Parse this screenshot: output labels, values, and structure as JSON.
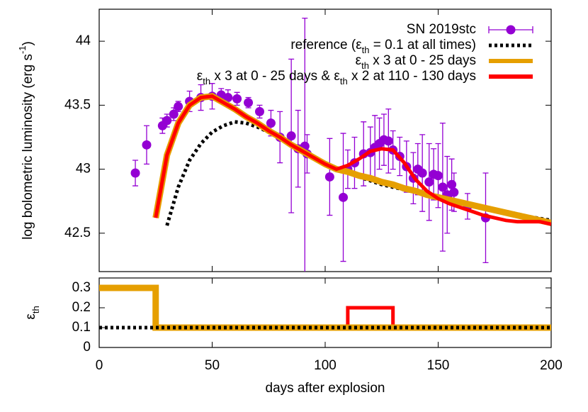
{
  "chart_data": [
    {
      "type": "line",
      "y_label": "log bolometric luminosity (erg s-1)",
      "xlim": [
        0,
        200
      ],
      "xticks": [
        0,
        50,
        100,
        150,
        200
      ],
      "ylim": [
        42.2,
        44.25
      ],
      "yticks": [
        42.5,
        43,
        43.5,
        44
      ],
      "legend": "top-right",
      "series": [
        {
          "name": "SN 2019stc",
          "type": "errorbar",
          "color": "#9400d3",
          "x": [
            16,
            21,
            28,
            30,
            33,
            35,
            40,
            45,
            50,
            54,
            57,
            61,
            66,
            71,
            76,
            80,
            85,
            88,
            91,
            92,
            102,
            108,
            110,
            113,
            117,
            120,
            122,
            124,
            126,
            128,
            130,
            133,
            136,
            139,
            141,
            143,
            146,
            148,
            150,
            152,
            154,
            156,
            157,
            163,
            171
          ],
          "values": [
            42.97,
            43.19,
            43.34,
            43.38,
            43.43,
            43.49,
            43.53,
            43.56,
            43.57,
            43.58,
            43.56,
            43.55,
            43.52,
            43.45,
            43.36,
            43.25,
            43.26,
            43.16,
            43.18,
            43.12,
            42.94,
            42.78,
            43.0,
            43.05,
            43.12,
            43.13,
            43.17,
            43.2,
            43.23,
            43.22,
            43.15,
            43.1,
            43.02,
            42.93,
            43.0,
            42.97,
            42.9,
            42.96,
            42.95,
            42.86,
            42.8,
            42.88,
            42.82,
            42.71,
            42.62
          ],
          "errors": [
            0.1,
            0.15,
            0.06,
            0.05,
            0.05,
            0.04,
            0.08,
            0.1,
            0.1,
            0.05,
            0.06,
            0.05,
            0.04,
            0.05,
            0.1,
            0.2,
            0.6,
            0.3,
            1.0,
            0.15,
            0.3,
            0.5,
            0.15,
            0.2,
            0.25,
            0.2,
            0.25,
            0.2,
            0.2,
            0.25,
            0.15,
            0.15,
            0.2,
            0.2,
            0.2,
            0.3,
            0.3,
            0.2,
            0.25,
            0.5,
            0.3,
            0.2,
            0.15,
            0.1,
            0.35
          ]
        },
        {
          "name": "reference (εth = 0.1 at all times)",
          "type": "line",
          "color": "#000000",
          "dash": true,
          "x": [
            25,
            30,
            35,
            40,
            45,
            50,
            55,
            60,
            65,
            70,
            75,
            80,
            85,
            90,
            95,
            100,
            105,
            110,
            115,
            120,
            125,
            130,
            140,
            150,
            160,
            170,
            180,
            190,
            200
          ],
          "values": [
            null,
            42.56,
            42.86,
            43.07,
            43.2,
            43.29,
            43.34,
            43.37,
            43.36,
            43.33,
            43.29,
            43.25,
            43.2,
            43.15,
            43.1,
            43.05,
            43.01,
            42.97,
            42.94,
            42.91,
            42.88,
            42.86,
            42.82,
            42.78,
            42.74,
            42.7,
            42.67,
            42.63,
            42.6
          ]
        },
        {
          "name": "εth x 3 at 0 - 25 days",
          "type": "line",
          "color": "#e69f00",
          "x": [
            25,
            30,
            35,
            40,
            45,
            50,
            55,
            60,
            65,
            70,
            75,
            80,
            85,
            90,
            95,
            100,
            105,
            110,
            115,
            120,
            125,
            130,
            135,
            140,
            145,
            150,
            155,
            160,
            165,
            170,
            175,
            180,
            185,
            190,
            195,
            200
          ],
          "values": [
            42.62,
            43.11,
            43.36,
            43.5,
            43.56,
            43.57,
            43.52,
            43.47,
            43.41,
            43.36,
            43.3,
            43.25,
            43.19,
            43.14,
            43.09,
            43.04,
            43.0,
            42.98,
            42.95,
            42.93,
            42.9,
            42.88,
            42.85,
            42.83,
            42.8,
            42.78,
            42.76,
            42.74,
            42.72,
            42.7,
            42.68,
            42.66,
            42.64,
            42.62,
            42.6,
            42.58
          ]
        },
        {
          "name": "εth x 3 at 0 - 25 days & εth x 2 at 110 - 130 days",
          "type": "line",
          "color": "#ff0000",
          "x": [
            25,
            30,
            35,
            40,
            45,
            50,
            55,
            60,
            65,
            70,
            75,
            80,
            85,
            90,
            95,
            100,
            105,
            110,
            115,
            120,
            125,
            130,
            135,
            140,
            145,
            150,
            155,
            160,
            165,
            170,
            175,
            180,
            185,
            190,
            195,
            200
          ],
          "values": [
            42.62,
            43.11,
            43.36,
            43.5,
            43.56,
            43.57,
            43.52,
            43.47,
            43.41,
            43.36,
            43.3,
            43.25,
            43.19,
            43.14,
            43.09,
            43.04,
            43.0,
            43.03,
            43.08,
            43.14,
            43.16,
            43.15,
            43.05,
            42.92,
            42.83,
            42.77,
            42.73,
            42.7,
            42.67,
            42.64,
            42.62,
            42.6,
            42.59,
            42.59,
            42.59,
            42.57
          ]
        }
      ]
    },
    {
      "type": "line",
      "x_label": "days after explosion",
      "y_label": "εth",
      "xlim": [
        0,
        200
      ],
      "xticks": [
        0,
        50,
        100,
        150,
        200
      ],
      "ylim": [
        0,
        0.35
      ],
      "yticks": [
        0,
        0.1,
        0.2,
        0.3
      ],
      "series": [
        {
          "type": "line",
          "color": "#ff0000",
          "x": [
            0,
            25,
            25,
            110,
            110,
            130,
            130,
            200
          ],
          "values": [
            0.3,
            0.3,
            0.1,
            0.1,
            0.2,
            0.2,
            0.1,
            0.1
          ]
        },
        {
          "type": "line",
          "color": "#e69f00",
          "x": [
            0,
            25,
            25,
            200
          ],
          "values": [
            0.3,
            0.3,
            0.1,
            0.1
          ]
        },
        {
          "type": "line",
          "color": "#000000",
          "dash": true,
          "x": [
            0,
            200
          ],
          "values": [
            0.1,
            0.1
          ]
        }
      ]
    }
  ]
}
